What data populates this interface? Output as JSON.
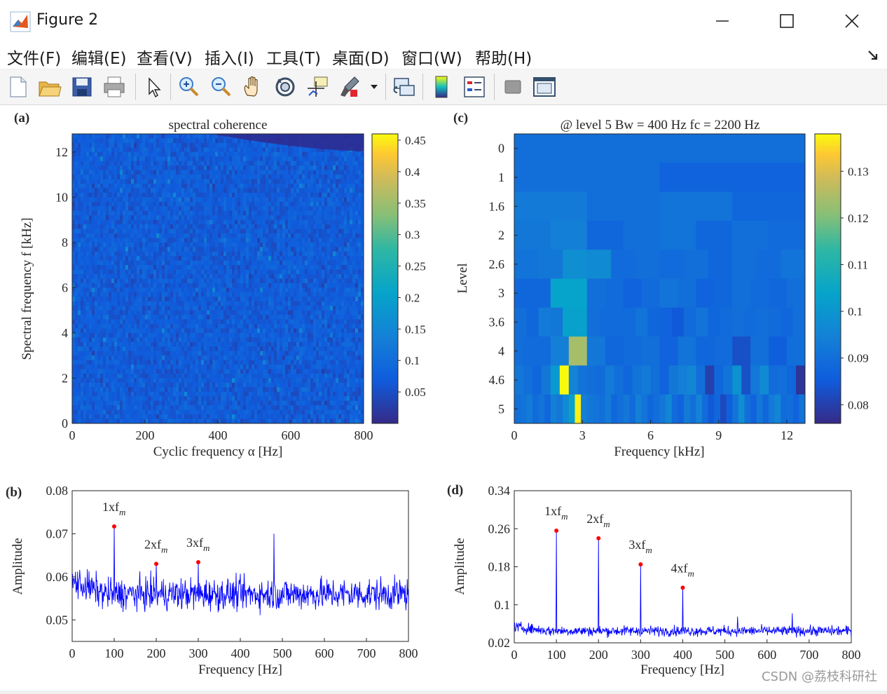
{
  "window": {
    "title": "Figure 2",
    "watermark": "CSDN @荔枝科研社"
  },
  "menu": [
    "文件(F)",
    "编辑(E)",
    "查看(V)",
    "插入(I)",
    "工具(T)",
    "桌面(D)",
    "窗口(W)",
    "帮助(H)"
  ],
  "toolbar_icons": [
    "new-figure-icon",
    "open-file-icon",
    "save-icon",
    "print-icon",
    "select-arrow-icon",
    "zoom-in-icon",
    "zoom-out-icon",
    "pan-hand-icon",
    "rotate-3d-icon",
    "data-cursor-icon",
    "brush-icon",
    "brush-dropdown-icon",
    "link-plot-icon",
    "colorbar-icon",
    "legend-icon",
    "hide-plot-tools-icon",
    "show-plot-tools-icon"
  ],
  "panels": {
    "a": {
      "label": "(a)",
      "title": "spectral coherence",
      "xlabel": "Cyclic frequency α [Hz]",
      "ylabel": "Spectral frequency f [kHz]",
      "xticks": [
        "0",
        "200",
        "400",
        "600",
        "800"
      ],
      "yticks": [
        "0",
        "2",
        "4",
        "6",
        "8",
        "10",
        "12"
      ],
      "colorbar_ticks": [
        "0.05",
        "0.1",
        "0.15",
        "0.2",
        "0.25",
        "0.3",
        "0.35",
        "0.4",
        "0.45"
      ]
    },
    "b": {
      "label": "(b)",
      "xlabel": "Frequency [Hz]",
      "ylabel": "Amplitude",
      "xticks": [
        "0",
        "100",
        "200",
        "300",
        "400",
        "500",
        "600",
        "700",
        "800"
      ],
      "yticks": [
        "0.05",
        "0.06",
        "0.07",
        "0.08"
      ],
      "annotations": [
        "1xf",
        "2xf",
        "3xf"
      ],
      "subscript": "m"
    },
    "c": {
      "label": "(c)",
      "title": "@ level 5  Bw = 400 Hz   fc = 2200 Hz",
      "xlabel": "Frequency [kHz]",
      "ylabel": "Level",
      "xticks": [
        "0",
        "3",
        "6",
        "9",
        "12"
      ],
      "yticks": [
        "0",
        "1",
        "1.6",
        "2",
        "2.6",
        "3",
        "3.6",
        "4",
        "4.6",
        "5"
      ],
      "colorbar_ticks": [
        "0.08",
        "0.09",
        "0.1",
        "0.11",
        "0.12",
        "0.13"
      ]
    },
    "d": {
      "label": "(d)",
      "xlabel": "Frequency [Hz]",
      "ylabel": "Amplitude",
      "xticks": [
        "0",
        "100",
        "200",
        "300",
        "400",
        "500",
        "600",
        "700",
        "800"
      ],
      "yticks": [
        "0.02",
        "0.1",
        "0.18",
        "0.26",
        "0.34"
      ],
      "annotations": [
        "1xf",
        "2xf",
        "3xf",
        "4xf"
      ],
      "subscript": "m"
    }
  },
  "chart_data": [
    {
      "type": "heatmap",
      "title": "spectral coherence",
      "xlabel": "Cyclic frequency α [Hz]",
      "ylabel": "Spectral frequency f [kHz]",
      "xlim": [
        0,
        800
      ],
      "ylim": [
        0,
        12.8
      ],
      "clim": [
        0,
        0.46
      ],
      "colormap": "parula",
      "typical_value": 0.07
    },
    {
      "type": "line",
      "xlabel": "Frequency [Hz]",
      "ylabel": "Amplitude",
      "xlim": [
        0,
        800
      ],
      "ylim": [
        0.045,
        0.08
      ],
      "color": "#0000ff",
      "baseline": 0.056,
      "peaks": [
        {
          "x": 100,
          "y": 0.0717,
          "label": "1xf_m"
        },
        {
          "x": 200,
          "y": 0.063,
          "label": "2xf_m"
        },
        {
          "x": 300,
          "y": 0.0634,
          "label": "3xf_m"
        },
        {
          "x": 480,
          "y": 0.07
        }
      ]
    },
    {
      "type": "heatmap",
      "title": "@ level 5  Bw = 400 Hz   fc = 2200 Hz",
      "xlabel": "Frequency [kHz]",
      "ylabel": "Level",
      "xlim": [
        0,
        12.8
      ],
      "clim": [
        0.076,
        0.138
      ],
      "colormap": "parula",
      "rows": [
        {
          "level": "0",
          "values": [
            0.09
          ]
        },
        {
          "level": "1",
          "values": [
            0.09,
            0.087
          ]
        },
        {
          "level": "1.6",
          "values": [
            0.093,
            0.09,
            0.091,
            0.088
          ]
        },
        {
          "level": "2",
          "values": [
            0.092,
            0.094,
            0.088,
            0.09,
            0.091,
            0.088,
            0.09,
            0.089
          ]
        },
        {
          "level": "2.6",
          "values": [
            0.091,
            0.092,
            0.098,
            0.097,
            0.089,
            0.09,
            0.089,
            0.09,
            0.088,
            0.09,
            0.089,
            0.091
          ]
        },
        {
          "level": "3",
          "values": [
            0.088,
            0.088,
            0.104,
            0.104,
            0.09,
            0.089,
            0.087,
            0.089,
            0.091,
            0.09,
            0.087,
            0.088,
            0.09,
            0.089,
            0.088,
            0.09
          ]
        },
        {
          "level": "3.6",
          "values": [
            0.09,
            0.088,
            0.093,
            0.092,
            0.103,
            0.103,
            0.09,
            0.089,
            0.089,
            0.089,
            0.091,
            0.088,
            0.087,
            0.085,
            0.089,
            0.091,
            0.088,
            0.089,
            0.09,
            0.089,
            0.09,
            0.089,
            0.088,
            0.09
          ]
        },
        {
          "level": "4",
          "values": [
            0.09,
            0.089,
            0.089,
            0.089,
            0.094,
            0.094,
            0.124,
            0.124,
            0.092,
            0.092,
            0.088,
            0.088,
            0.089,
            0.089,
            0.09,
            0.09,
            0.087,
            0.087,
            0.091,
            0.091,
            0.088,
            0.088,
            0.089,
            0.089,
            0.083,
            0.083,
            0.09,
            0.09,
            0.086,
            0.086,
            0.09,
            0.09
          ]
        },
        {
          "level": "4.6",
          "values": [
            0.092,
            0.09,
            0.088,
            0.092,
            0.101,
            0.138,
            0.095,
            0.091,
            0.09,
            0.089,
            0.093,
            0.09,
            0.088,
            0.091,
            0.093,
            0.09,
            0.087,
            0.092,
            0.094,
            0.096,
            0.09,
            0.08,
            0.088,
            0.091,
            0.099,
            0.083,
            0.092,
            0.097,
            0.089,
            0.09,
            0.088,
            0.078
          ]
        },
        {
          "level": "5",
          "values": [
            0.09,
            0.091,
            0.093,
            0.089,
            0.091,
            0.088,
            0.094,
            0.092,
            0.097,
            0.103,
            0.137,
            0.094,
            0.092,
            0.091,
            0.09,
            0.093,
            0.088,
            0.09,
            0.092,
            0.089,
            0.094,
            0.091,
            0.088,
            0.09,
            0.092,
            0.096,
            0.089,
            0.087,
            0.093,
            0.09,
            0.095,
            0.089,
            0.085,
            0.088,
            0.082,
            0.086,
            0.091,
            0.098,
            0.09,
            0.087,
            0.092,
            0.088,
            0.093,
            0.096,
            0.089,
            0.09,
            0.087,
            0.091
          ]
        }
      ]
    },
    {
      "type": "line",
      "xlabel": "Frequency [Hz]",
      "ylabel": "Amplitude",
      "xlim": [
        0,
        800
      ],
      "ylim": [
        0.02,
        0.34
      ],
      "color": "#0000ff",
      "baseline": 0.045,
      "peaks": [
        {
          "x": 100,
          "y": 0.256,
          "label": "1xf_m"
        },
        {
          "x": 200,
          "y": 0.24,
          "label": "2xf_m"
        },
        {
          "x": 300,
          "y": 0.185,
          "label": "3xf_m"
        },
        {
          "x": 400,
          "y": 0.136,
          "label": "4xf_m"
        }
      ]
    }
  ]
}
